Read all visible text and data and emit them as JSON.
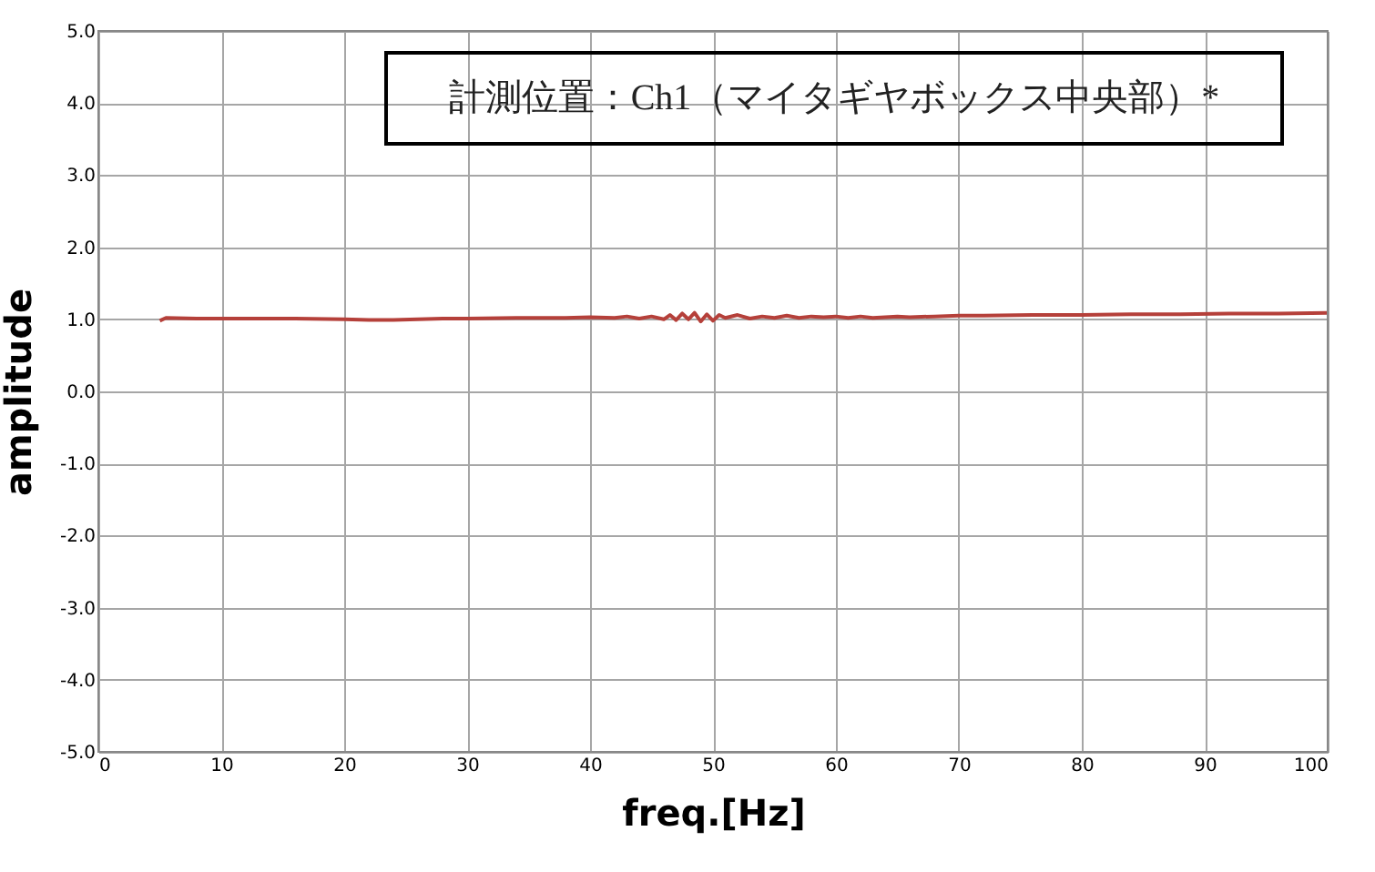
{
  "chart_data": {
    "type": "line",
    "xlabel": "freq.[Hz]",
    "ylabel": "amplitude",
    "annotations": [
      "計測位置：Ch1（マイタギヤボックス中央部）*"
    ],
    "xlim": [
      0,
      100
    ],
    "xticks": [
      0,
      10,
      20,
      30,
      40,
      50,
      60,
      70,
      80,
      90,
      100
    ],
    "ylim": [
      -5.0,
      5.0
    ],
    "yticks": [
      {
        "value": -5,
        "label": "-5.0"
      },
      {
        "value": -4,
        "label": "-4.0"
      },
      {
        "value": -3,
        "label": "-3.0"
      },
      {
        "value": -2,
        "label": "-2.0"
      },
      {
        "value": -1,
        "label": "-1.0"
      },
      {
        "value": 0,
        "label": "0.0"
      },
      {
        "value": 1,
        "label": "1.0"
      },
      {
        "value": 2,
        "label": "2.0"
      },
      {
        "value": 3,
        "label": "3.0"
      },
      {
        "value": 4,
        "label": "4.0"
      },
      {
        "value": 5,
        "label": "5.0"
      }
    ],
    "grid": true,
    "line_style": "solid",
    "marker": "none",
    "series": [
      {
        "color": "#b5403a",
        "x": [
          5,
          5.5,
          8,
          12,
          16,
          20,
          22,
          24,
          26,
          28,
          30,
          34,
          38,
          40,
          42,
          43,
          44,
          45,
          46,
          46.5,
          47,
          47.5,
          48,
          48.5,
          49,
          49.5,
          50,
          50.5,
          51,
          52,
          53,
          54,
          55,
          56,
          57,
          58,
          59,
          60,
          61,
          62,
          63,
          64,
          65,
          66,
          68,
          70,
          72,
          76,
          80,
          84,
          88,
          92,
          96,
          100
        ],
        "values": [
          0.98,
          1.02,
          1.01,
          1.01,
          1.01,
          1.0,
          0.99,
          0.99,
          1.0,
          1.01,
          1.01,
          1.02,
          1.02,
          1.03,
          1.02,
          1.04,
          1.01,
          1.04,
          1.0,
          1.06,
          0.99,
          1.08,
          1.0,
          1.09,
          0.97,
          1.07,
          0.98,
          1.06,
          1.02,
          1.06,
          1.01,
          1.04,
          1.02,
          1.05,
          1.02,
          1.04,
          1.03,
          1.04,
          1.02,
          1.04,
          1.02,
          1.03,
          1.04,
          1.03,
          1.04,
          1.05,
          1.05,
          1.06,
          1.06,
          1.07,
          1.07,
          1.08,
          1.08,
          1.09
        ]
      }
    ]
  }
}
